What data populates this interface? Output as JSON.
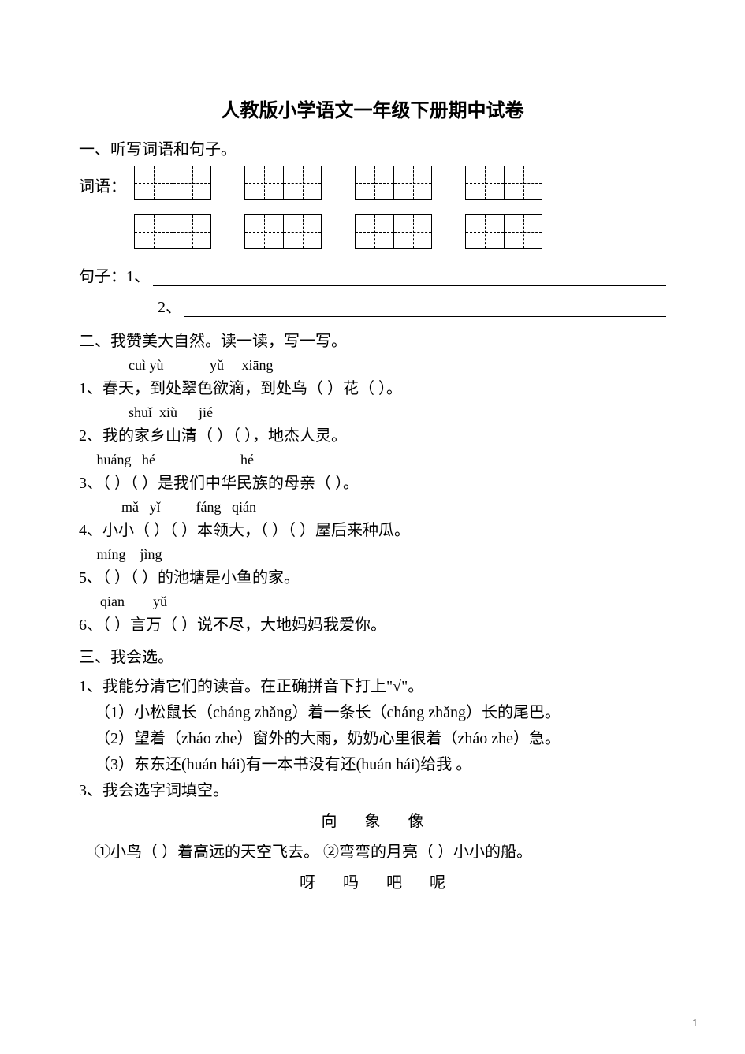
{
  "title": "人教版小学语文一年级下册期中试卷",
  "s1": {
    "head": "一、听写词语和句子。",
    "wordsLabel": "词语：",
    "sentLabel": "句子：1、",
    "sent2Label": "2、"
  },
  "s2": {
    "head": "二、我赞美大自然。读一读，写一写。",
    "p1": "              cuì yù             yǔ     xiāng",
    "l1": "1、春天，到处翠色欲滴，到处鸟（       ）花（     ）。",
    "p2": "              shuǐ  xiù      jié",
    "l2": "2、我的家乡山清（     ）（       ），地杰人灵。",
    "p3": "     huáng   hé                        hé",
    "l3": "3、（     ）（     ）是我们中华民族的母亲（     ）。",
    "p4": "            mǎ   yǐ          fáng   qián",
    "l4": "4、小小（     ）（     ）本领大，（     ）（     ）屋后来种瓜。",
    "p5": "     míng    jìng",
    "l5": "5、（     ）（       ）的池塘是小鱼的家。",
    "p6": "      qiān        yǔ",
    "l6": "6、（    ）言万（      ）说不尽，大地妈妈我爱你。"
  },
  "s3": {
    "head": "三、我会选。",
    "q1head": "1、我能分清它们的读音。在正确拼音下打上\"√\"。",
    "q1a": "（1）小松鼠长（cháng   zhǎng）着一条长（cháng   zhǎng）长的尾巴。",
    "q1b": "（2）望着（zháo   zhe）窗外的大雨，奶奶心里很着（zháo   zhe）急。",
    "q1c": "（3）东东还(huán   hái)有一本书没有还(huán   hái)给我 。",
    "q3head": "3、我会选字词填空。",
    "choices1": "向       象       像",
    "q3a": "①小鸟（    ）着高远的天空飞去。  ②弯弯的月亮（    ）小小的船。",
    "choices2": "呀       吗       吧       呢"
  },
  "pageNum": "1"
}
